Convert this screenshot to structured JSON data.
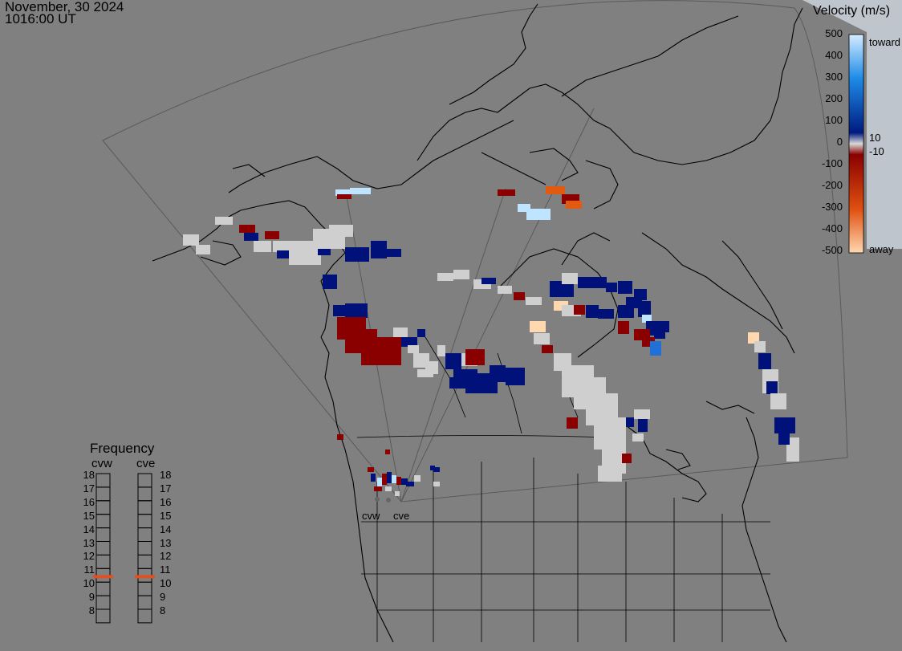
{
  "header": {
    "date": "November, 30 2024",
    "time": "1016:00 UT"
  },
  "velocity_legend": {
    "title": "Velocity (m/s)",
    "ticks": [
      "500",
      "400",
      "300",
      "200",
      "100",
      "0",
      "-100",
      "-200",
      "-300",
      "-400",
      "-500"
    ],
    "toward_label": "toward",
    "away_label": "away",
    "pos_threshold": "10",
    "neg_threshold": "-10",
    "colors": {
      "toward_max": "#d6ecff",
      "toward_mid": "#1e8ce8",
      "toward_min": "#001a80",
      "zero": "#d9d9d9",
      "away_min": "#8a0000",
      "away_mid": "#e05010",
      "away_max": "#ffd8b0"
    }
  },
  "frequency_legend": {
    "title": "Frequency",
    "radars": [
      {
        "name": "cvw",
        "frequency_mhz": 10.9
      },
      {
        "name": "cve",
        "frequency_mhz": 10.9
      }
    ],
    "scale": [
      "18",
      "17",
      "16",
      "15",
      "14",
      "13",
      "12",
      "11",
      "10",
      "9",
      "8"
    ],
    "marker_color": "#e05020"
  },
  "sites": [
    {
      "name": "cvw"
    },
    {
      "name": "cve"
    }
  ],
  "map": {
    "ocean_color": "#808080",
    "land_line_color": "#000000",
    "fov_line_color": "#5a5a5a"
  }
}
